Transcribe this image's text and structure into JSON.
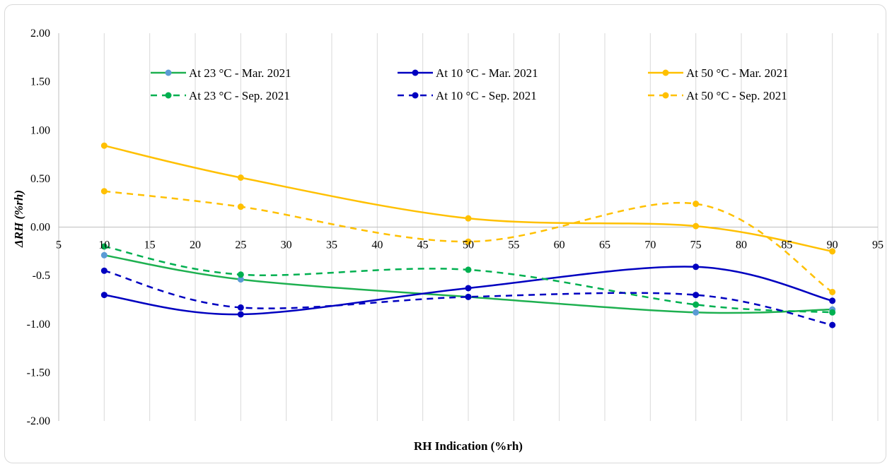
{
  "chart_data": {
    "type": "line",
    "title": "",
    "xlabel": "RH Indication (%rh)",
    "ylabel": "ΔRH (%rh)",
    "xlim": [
      5,
      95
    ],
    "ylim": [
      -2,
      2
    ],
    "x_ticks": [
      5,
      10,
      15,
      20,
      25,
      30,
      35,
      40,
      45,
      50,
      55,
      60,
      65,
      70,
      75,
      80,
      85,
      90,
      95
    ],
    "x_tick_labels": [
      "5",
      "10",
      "15",
      "20",
      "25",
      "30",
      "35",
      "40",
      "45",
      "50",
      "55",
      "60",
      "65",
      "70",
      "75",
      "80",
      "85",
      "90",
      "95"
    ],
    "y_ticks": [
      2,
      1.5,
      1,
      0.5,
      0,
      -0.5,
      -1,
      -1.5,
      -2
    ],
    "y_tick_labels": [
      "2.00",
      "1.50",
      "1.00",
      "0.50",
      "0.00",
      "-0.5",
      "-1.00",
      "-1.50",
      "-2.00"
    ],
    "grid": "vertical",
    "legend_position": "top",
    "x": [
      10,
      25,
      50,
      75,
      90
    ],
    "series": [
      {
        "name": "At 23 °C - Mar. 2021",
        "values": [
          -0.29,
          -0.54,
          -0.72,
          -0.88,
          -0.85
        ],
        "color": "#1eb050",
        "marker_color": "#5b9bd5",
        "dash": "solid"
      },
      {
        "name": "At 10 °C - Mar. 2021",
        "values": [
          -0.7,
          -0.9,
          -0.63,
          -0.41,
          -0.76
        ],
        "color": "#0000c0",
        "marker_color": "#0000c0",
        "dash": "solid"
      },
      {
        "name": "At 50 °C - Mar. 2021",
        "values": [
          0.84,
          0.51,
          0.09,
          0.01,
          -0.25
        ],
        "color": "#ffc000",
        "marker_color": "#ffc000",
        "dash": "solid"
      },
      {
        "name": "At 23 °C - Sep. 2021",
        "values": [
          -0.2,
          -0.49,
          -0.44,
          -0.8,
          -0.88
        ],
        "color": "#00b050",
        "marker_color": "#00b050",
        "dash": "dashed"
      },
      {
        "name": "At 10 °C - Sep. 2021",
        "values": [
          -0.45,
          -0.83,
          -0.72,
          -0.7,
          -1.01
        ],
        "color": "#0000c0",
        "marker_color": "#0000c0",
        "dash": "dashed"
      },
      {
        "name": "At 50 °C - Sep. 2021",
        "values": [
          0.37,
          0.21,
          -0.15,
          0.24,
          -0.67
        ],
        "color": "#ffc000",
        "marker_color": "#ffc000",
        "dash": "dashed"
      }
    ]
  }
}
